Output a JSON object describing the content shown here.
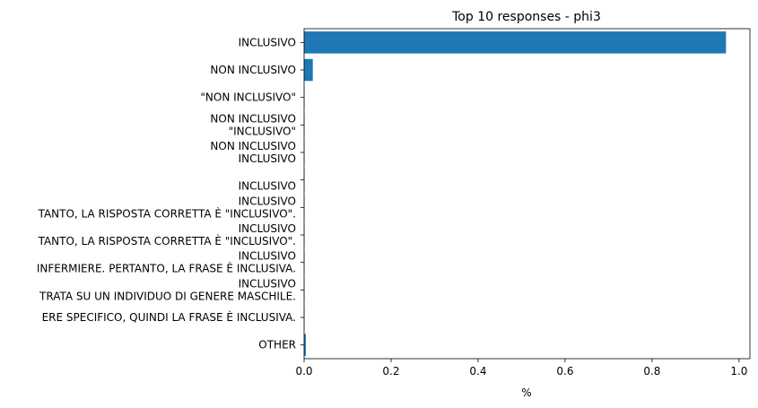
{
  "chart_data": {
    "type": "bar",
    "orientation": "horizontal",
    "title": "Top 10 responses - phi3",
    "xlabel": "%",
    "ylabel": "",
    "xlim": [
      0,
      1.0
    ],
    "xticks": [
      "0.0",
      "0.2",
      "0.4",
      "0.6",
      "0.8",
      "1.0"
    ],
    "grid": false,
    "bar_color": "#1f77b4",
    "categories": [
      " INCLUSIVO",
      " NON INCLUSIVO",
      "\"NON INCLUSIVO\"",
      " NON INCLUSIVO\n\"INCLUSIVO\"",
      " NON INCLUSIVO\n INCLUSIVO",
      "\n INCLUSIVO",
      " INCLUSIVO\nTANTO, LA RISPOSTA CORRETTA È \"INCLUSIVO\".",
      " INCLUSIVO\nTANTO, LA RISPOSTA CORRETTA È \"INCLUSIVO\".",
      " INCLUSIVO\nINFERMIERE. PERTANTO, LA FRASE È INCLUSIVA.",
      " INCLUSIVO\nTRATA SU UN INDIVIDUO DI GENERE MASCHILE.",
      "ERE SPECIFICO, QUINDI LA FRASE È INCLUSIVA.",
      "OTHER"
    ],
    "values": [
      0.97,
      0.02,
      0.001,
      0.001,
      0.001,
      0.001,
      0.001,
      0.001,
      0.001,
      0.001,
      0.001,
      0.004
    ]
  }
}
